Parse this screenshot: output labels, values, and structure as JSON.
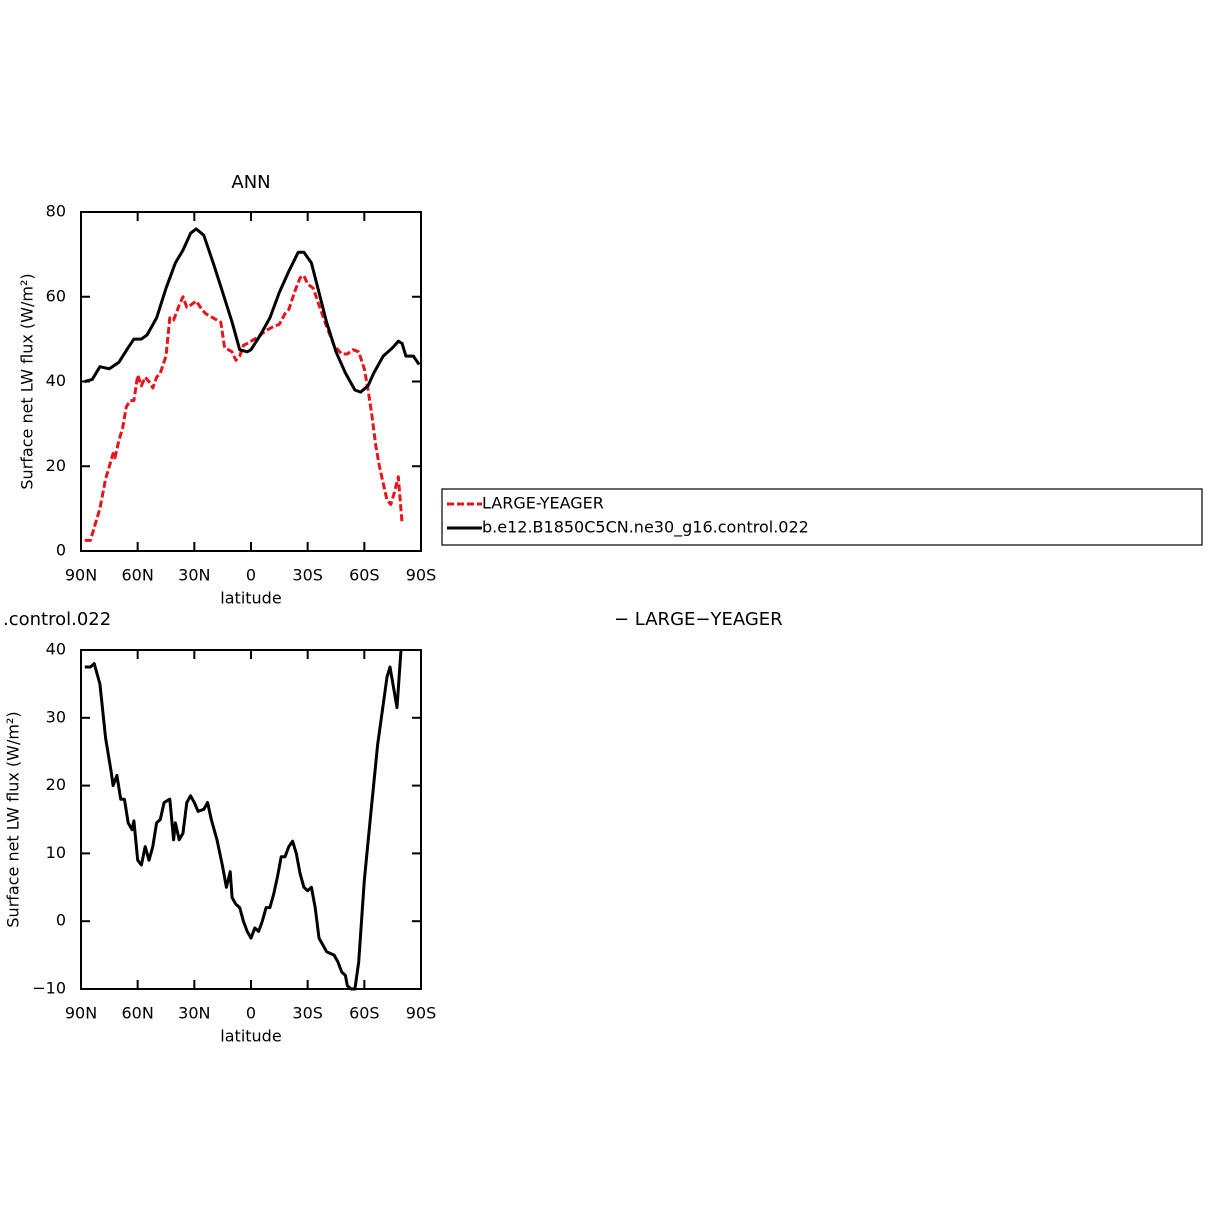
{
  "chart_data": [
    {
      "type": "line",
      "title": "ANN",
      "xlabel": "latitude",
      "ylabel": "Surface net LW flux (W/m²)",
      "xlim": [
        90,
        -90
      ],
      "xticks": [
        {
          "value": 90,
          "label": "90N"
        },
        {
          "value": 60,
          "label": "60N"
        },
        {
          "value": 30,
          "label": "30N"
        },
        0,
        {
          "value": -30,
          "label": "30S"
        },
        {
          "value": -60,
          "label": "60S"
        },
        {
          "value": -90,
          "label": "90S"
        }
      ],
      "ylim": [
        0,
        80
      ],
      "yticks": [
        0,
        20,
        40,
        60,
        80
      ],
      "series": [
        {
          "name": "LARGE-YEAGER",
          "color": "#e8141c",
          "dashed": true,
          "x": [
            88,
            85,
            82,
            80,
            77,
            73,
            72,
            70,
            68,
            66,
            64,
            62,
            60,
            58,
            56,
            54,
            52,
            50,
            48,
            45,
            43,
            41,
            38,
            36,
            34,
            32,
            29,
            26,
            24,
            20,
            16,
            14,
            10,
            8,
            6,
            4,
            2,
            0,
            -2,
            -5,
            -8,
            -12,
            -15,
            -18,
            -20,
            -23,
            -26,
            -28,
            -30,
            -33,
            -36,
            -40,
            -44,
            -48,
            -51,
            -54,
            -57,
            -60,
            -62,
            -64,
            -66,
            -68,
            -70,
            -72,
            -74,
            -76,
            -78,
            -79,
            -80
          ],
          "values": [
            2.5,
            2.5,
            7,
            10,
            17,
            23,
            22,
            26,
            29,
            34,
            35.5,
            35.5,
            41.5,
            39,
            41,
            40,
            38.5,
            41,
            42,
            46,
            55,
            54.5,
            58,
            60,
            57.5,
            58,
            59,
            57,
            56,
            55,
            54,
            48,
            47,
            45,
            46,
            48.5,
            49,
            49.5,
            50,
            51,
            52,
            53,
            53.5,
            56,
            57,
            61,
            64.5,
            65,
            63,
            62,
            58,
            53,
            48.5,
            46.5,
            46.5,
            47.5,
            47,
            43,
            38,
            32,
            25,
            20,
            16,
            12,
            11,
            14,
            17.5,
            12,
            6.5
          ]
        },
        {
          "name": "b.e12.B1850C5CN.ne30_g16.control.022",
          "color": "#000000",
          "dashed": false,
          "x": [
            88,
            84,
            80,
            75,
            70,
            65,
            62,
            58,
            55,
            50,
            45,
            40,
            36,
            32,
            29,
            25,
            20,
            15,
            10,
            6,
            2,
            0,
            -5,
            -10,
            -15,
            -20,
            -25,
            -28,
            -32,
            -36,
            -40,
            -45,
            -50,
            -55,
            -58,
            -62,
            -65,
            -70,
            -75,
            -78,
            -80,
            -82,
            -86,
            -89
          ],
          "values": [
            40,
            40.5,
            43.5,
            43,
            44.5,
            48,
            50,
            50,
            51,
            55,
            62,
            68,
            71,
            75,
            76,
            74.5,
            68,
            61,
            54,
            47.5,
            47,
            47.5,
            51,
            55,
            61,
            66,
            70.5,
            70.5,
            68,
            61,
            54,
            47,
            42,
            38,
            37.5,
            39,
            42,
            46,
            48,
            49.5,
            49,
            46,
            46,
            44
          ]
        }
      ]
    },
    {
      "type": "line",
      "title_left": ".control.022",
      "title_right": "− LARGE−YEAGER",
      "xlabel": "latitude",
      "ylabel": "Surface net LW flux (W/m²)",
      "xlim": [
        90,
        -90
      ],
      "xticks": [
        {
          "value": 90,
          "label": "90N"
        },
        {
          "value": 60,
          "label": "60N"
        },
        {
          "value": 30,
          "label": "30N"
        },
        0,
        {
          "value": -30,
          "label": "30S"
        },
        {
          "value": -60,
          "label": "60S"
        },
        {
          "value": -90,
          "label": "90S"
        }
      ],
      "ylim": [
        -10,
        40
      ],
      "yticks": [
        {
          "value": -10,
          "label": "−10"
        },
        0,
        10,
        20,
        30,
        40
      ],
      "series": [
        {
          "color": "#000000",
          "dashed": false,
          "x": [
            88,
            85,
            83,
            80,
            77,
            74,
            73,
            71,
            69,
            67,
            65,
            63,
            62,
            60,
            58,
            56,
            54,
            52,
            50,
            48,
            46,
            43,
            41,
            40,
            38,
            36,
            34,
            32,
            30,
            28,
            25,
            23,
            21,
            18,
            15,
            13,
            11,
            10,
            8,
            6,
            4,
            2,
            0,
            -2,
            -4,
            -6,
            -8,
            -10,
            -12,
            -14,
            -16,
            -18,
            -20,
            -22,
            -24,
            -26,
            -28,
            -30,
            -32,
            -34,
            -36,
            -38,
            -40,
            -44,
            -46,
            -48,
            -50,
            -51,
            -53,
            -55,
            -57,
            -60,
            -63.5,
            -67,
            -72,
            -73.6,
            -77.3,
            -79.4
          ],
          "values": [
            37.5,
            37.5,
            38,
            35,
            27,
            22,
            20,
            21.5,
            18,
            18,
            14.5,
            13.5,
            14.8,
            9,
            8.3,
            11,
            9,
            11,
            14.5,
            15,
            17.5,
            18,
            12,
            14.5,
            12,
            13,
            17.5,
            18.5,
            17.5,
            16.2,
            16.5,
            17.5,
            15,
            12,
            8,
            5,
            7.3,
            3.5,
            2.5,
            2,
            0,
            -1.5,
            -2.5,
            -1,
            -1.5,
            0,
            2,
            2,
            4,
            6.5,
            9.5,
            9.5,
            11,
            11.8,
            10,
            7,
            5,
            4.5,
            5,
            2,
            -2.5,
            -3.5,
            -4.5,
            -5,
            -6,
            -7.5,
            -8,
            -9.5,
            -10,
            -10,
            -6,
            6,
            16,
            26,
            36,
            37.5,
            31.5,
            40
          ]
        }
      ]
    }
  ]
}
